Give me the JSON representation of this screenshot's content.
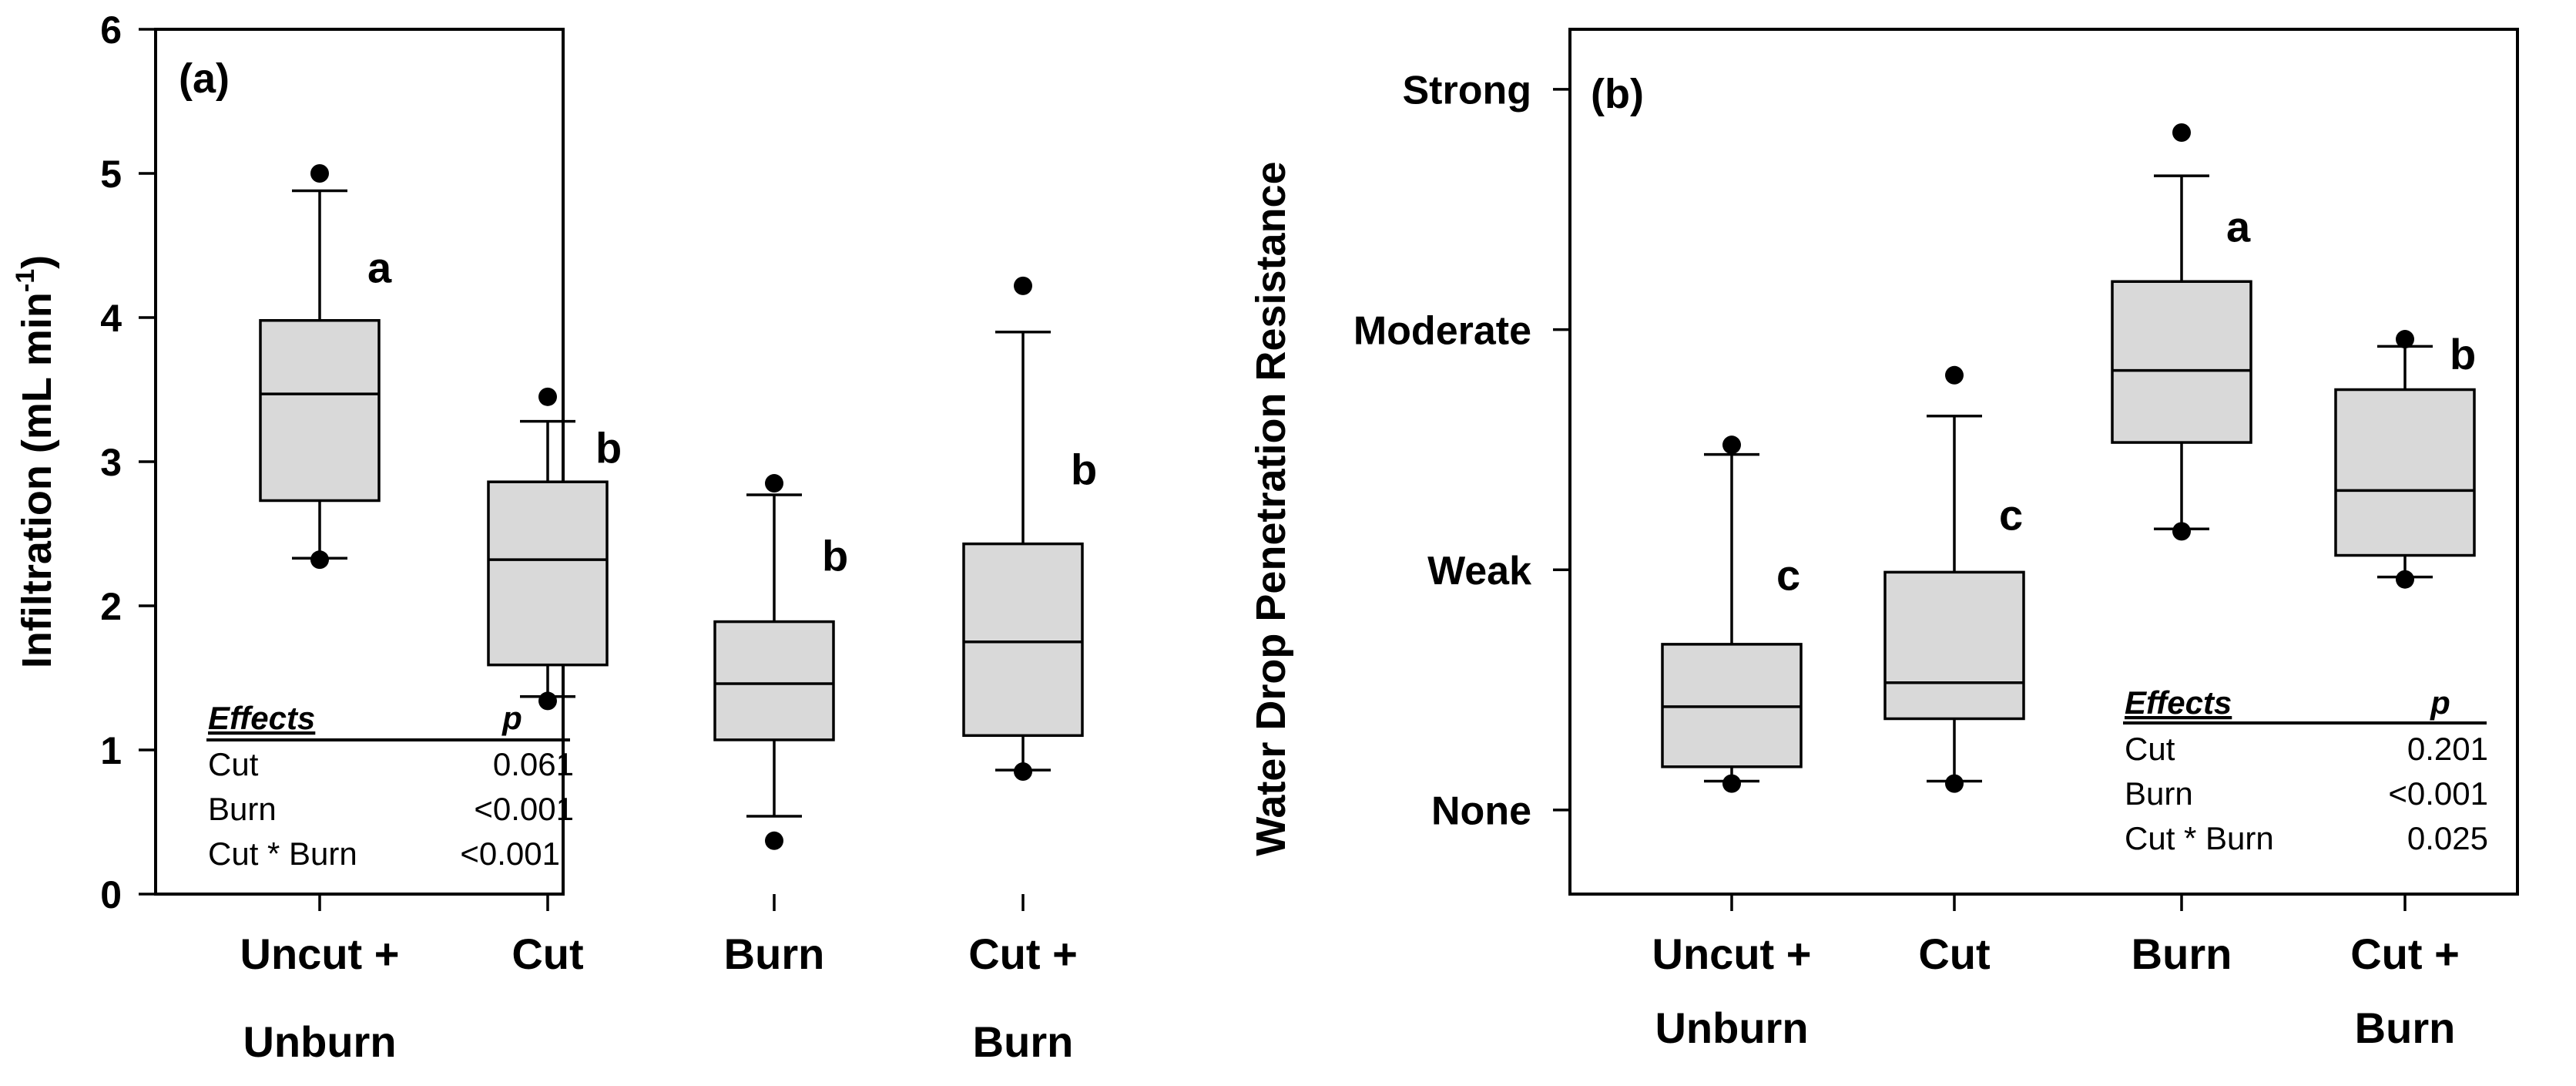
{
  "chart_data": [
    {
      "type": "box",
      "panel": "(a)",
      "ylabel": "Infiltration (mL min",
      "ylabel_sup": "-1",
      "ylabel_close": ")",
      "ylim": [
        0,
        6
      ],
      "yticks": [
        0,
        1,
        2,
        3,
        4,
        5,
        6
      ],
      "ytick_labels": [
        "0",
        "1",
        "2",
        "3",
        "4",
        "5",
        "6"
      ],
      "categories": [
        [
          "Uncut +",
          "Unburn"
        ],
        [
          "Cut"
        ],
        [
          "Burn"
        ],
        [
          "Cut +",
          "Burn"
        ]
      ],
      "boxes": [
        {
          "whisker_low": 2.33,
          "q1": 2.73,
          "median": 3.47,
          "q3": 3.98,
          "whisker_high": 4.88,
          "outliers": [
            2.32,
            5.0
          ],
          "letter": "a",
          "letter_y": 4.35
        },
        {
          "whisker_low": 1.37,
          "q1": 1.59,
          "median": 2.32,
          "q3": 2.86,
          "whisker_high": 3.28,
          "outliers": [
            1.34,
            3.45
          ],
          "letter": "b",
          "letter_y": 3.1
        },
        {
          "whisker_low": 0.54,
          "q1": 1.07,
          "median": 1.46,
          "q3": 1.89,
          "whisker_high": 2.77,
          "outliers": [
            0.37,
            2.85
          ],
          "letter": "b",
          "letter_y": 2.35
        },
        {
          "whisker_low": 0.86,
          "q1": 1.1,
          "median": 1.75,
          "q3": 2.43,
          "whisker_high": 3.9,
          "outliers": [
            0.85,
            4.22
          ],
          "letter": "b",
          "letter_y": 2.95
        }
      ],
      "effects_table": {
        "header": [
          "Effects",
          "p"
        ],
        "rows": [
          [
            "Cut",
            "0.061"
          ],
          [
            "Burn",
            "<0.001"
          ],
          [
            "Cut * Burn",
            "<0.001"
          ]
        ]
      }
    },
    {
      "type": "box",
      "panel": "(b)",
      "ylabel": "Water Drop Penetration Resistance",
      "ylim": [
        -0.35,
        3.25
      ],
      "yticks": [
        0,
        1,
        2,
        3
      ],
      "ytick_labels": [
        "None",
        "Weak",
        "Moderate",
        "Strong"
      ],
      "categories": [
        [
          "Uncut +",
          "Unburn"
        ],
        [
          "Cut"
        ],
        [
          "Burn"
        ],
        [
          "Cut +",
          "Burn"
        ]
      ],
      "boxes": [
        {
          "whisker_low": 0.12,
          "q1": 0.18,
          "median": 0.43,
          "q3": 0.69,
          "whisker_high": 1.48,
          "outliers": [
            0.11,
            1.52
          ],
          "letter": "c",
          "letter_y": 0.98
        },
        {
          "whisker_low": 0.12,
          "q1": 0.38,
          "median": 0.53,
          "q3": 0.99,
          "whisker_high": 1.64,
          "outliers": [
            0.11,
            1.81
          ],
          "letter": "c",
          "letter_y": 1.23
        },
        {
          "whisker_low": 1.17,
          "q1": 1.53,
          "median": 1.83,
          "q3": 2.2,
          "whisker_high": 2.64,
          "outliers": [
            1.16,
            2.82
          ],
          "letter": "a",
          "letter_y": 2.43
        },
        {
          "whisker_low": 0.97,
          "q1": 1.06,
          "median": 1.33,
          "q3": 1.75,
          "whisker_high": 1.93,
          "outliers": [
            0.96,
            1.96
          ],
          "letter": "b",
          "letter_y": 1.9
        }
      ],
      "effects_table": {
        "header": [
          "Effects",
          "p"
        ],
        "rows": [
          [
            "Cut",
            "0.201"
          ],
          [
            "Burn",
            "<0.001"
          ],
          [
            "Cut * Burn",
            "0.025"
          ]
        ]
      }
    }
  ]
}
